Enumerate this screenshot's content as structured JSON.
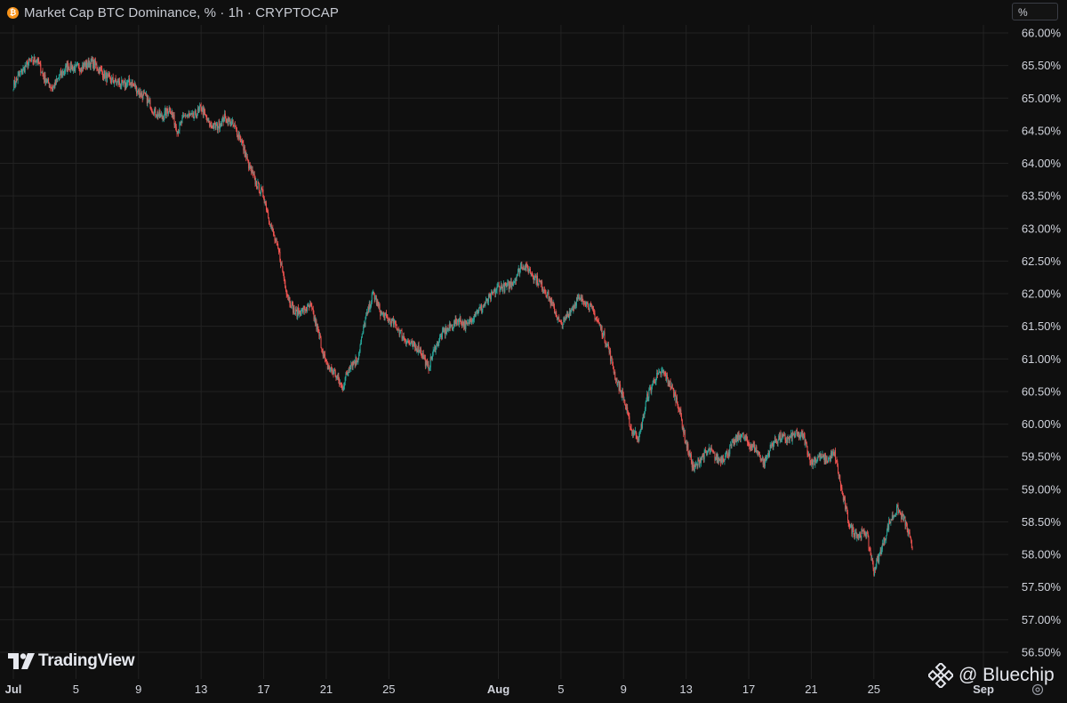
{
  "header": {
    "title": "Market Cap BTC Dominance, % · 1h · CRYPTOCAP",
    "symbol_icon": "bitcoin-icon",
    "unit_label": "%"
  },
  "branding": {
    "tradingview_label": "TradingView",
    "watermark_label": "@ Bluechip",
    "watermark_icon": "binance-diamond-icon"
  },
  "colors": {
    "background": "#0f0f0f",
    "grid": "#222222",
    "up": "#26a69a",
    "down": "#ef5350",
    "axis_text": "#d1d4dc"
  },
  "chart_data": {
    "type": "line",
    "title": "Market Cap BTC Dominance, % · 1h · CRYPTOCAP",
    "style": "candlestick-1h",
    "y_axis_side": "right",
    "grid": true,
    "ylim": [
      56.5,
      66.0
    ],
    "y_ticks": [
      66.0,
      65.5,
      65.0,
      64.5,
      64.0,
      63.5,
      63.0,
      62.5,
      62.0,
      61.5,
      61.0,
      60.5,
      60.0,
      59.5,
      59.0,
      58.5,
      58.0,
      57.5,
      57.0,
      56.5
    ],
    "y_tick_labels": [
      "66.00%",
      "65.50%",
      "65.00%",
      "64.50%",
      "64.00%",
      "63.50%",
      "63.00%",
      "62.50%",
      "62.00%",
      "61.50%",
      "61.00%",
      "60.50%",
      "60.00%",
      "59.50%",
      "59.00%",
      "58.50%",
      "58.00%",
      "57.50%",
      "57.00%",
      "56.50%"
    ],
    "xlim": [
      "2024-07-01",
      "2024-09-01"
    ],
    "x_ticks": [
      {
        "date": "2024-07-01",
        "label": "Jul",
        "bold": true
      },
      {
        "date": "2024-07-05",
        "label": "5",
        "bold": false
      },
      {
        "date": "2024-07-09",
        "label": "9",
        "bold": false
      },
      {
        "date": "2024-07-13",
        "label": "13",
        "bold": false
      },
      {
        "date": "2024-07-17",
        "label": "17",
        "bold": false
      },
      {
        "date": "2024-07-21",
        "label": "21",
        "bold": false
      },
      {
        "date": "2024-07-25",
        "label": "25",
        "bold": false
      },
      {
        "date": "2024-08-01",
        "label": "Aug",
        "bold": true
      },
      {
        "date": "2024-08-05",
        "label": "5",
        "bold": false
      },
      {
        "date": "2024-08-09",
        "label": "9",
        "bold": false
      },
      {
        "date": "2024-08-13",
        "label": "13",
        "bold": false
      },
      {
        "date": "2024-08-17",
        "label": "17",
        "bold": false
      },
      {
        "date": "2024-08-21",
        "label": "21",
        "bold": false
      },
      {
        "date": "2024-08-25",
        "label": "25",
        "bold": false
      },
      {
        "date": "2024-09-01",
        "label": "Sep",
        "bold": true
      }
    ],
    "series": [
      {
        "points": [
          [
            "2024-07-01T00:00",
            65.2
          ],
          [
            "2024-07-01T12:00",
            65.4
          ],
          [
            "2024-07-02T00:00",
            65.55
          ],
          [
            "2024-07-02T12:00",
            65.6
          ],
          [
            "2024-07-03T00:00",
            65.3
          ],
          [
            "2024-07-03T12:00",
            65.15
          ],
          [
            "2024-07-04T00:00",
            65.35
          ],
          [
            "2024-07-04T12:00",
            65.5
          ],
          [
            "2024-07-05T00:00",
            65.45
          ],
          [
            "2024-07-05T12:00",
            65.5
          ],
          [
            "2024-07-06T00:00",
            65.55
          ],
          [
            "2024-07-06T12:00",
            65.45
          ],
          [
            "2024-07-07T00:00",
            65.3
          ],
          [
            "2024-07-07T12:00",
            65.25
          ],
          [
            "2024-07-08T00:00",
            65.2
          ],
          [
            "2024-07-08T12:00",
            65.25
          ],
          [
            "2024-07-09T00:00",
            65.1
          ],
          [
            "2024-07-09T12:00",
            65.0
          ],
          [
            "2024-07-10T00:00",
            64.8
          ],
          [
            "2024-07-10T12:00",
            64.7
          ],
          [
            "2024-07-11T00:00",
            64.85
          ],
          [
            "2024-07-11T12:00",
            64.5
          ],
          [
            "2024-07-12T00:00",
            64.75
          ],
          [
            "2024-07-12T12:00",
            64.7
          ],
          [
            "2024-07-13T00:00",
            64.85
          ],
          [
            "2024-07-13T12:00",
            64.6
          ],
          [
            "2024-07-14T00:00",
            64.55
          ],
          [
            "2024-07-14T12:00",
            64.7
          ],
          [
            "2024-07-15T00:00",
            64.6
          ],
          [
            "2024-07-15T12:00",
            64.4
          ],
          [
            "2024-07-16T00:00",
            64.0
          ],
          [
            "2024-07-16T12:00",
            63.7
          ],
          [
            "2024-07-17T00:00",
            63.5
          ],
          [
            "2024-07-17T12:00",
            63.0
          ],
          [
            "2024-07-18T00:00",
            62.6
          ],
          [
            "2024-07-18T12:00",
            62.0
          ],
          [
            "2024-07-19T00:00",
            61.7
          ],
          [
            "2024-07-19T12:00",
            61.75
          ],
          [
            "2024-07-20T00:00",
            61.8
          ],
          [
            "2024-07-20T12:00",
            61.4
          ],
          [
            "2024-07-21T00:00",
            60.9
          ],
          [
            "2024-07-21T12:00",
            60.8
          ],
          [
            "2024-07-22T00:00",
            60.55
          ],
          [
            "2024-07-22T12:00",
            60.9
          ],
          [
            "2024-07-23T00:00",
            61.0
          ],
          [
            "2024-07-23T12:00",
            61.6
          ],
          [
            "2024-07-24T00:00",
            62.0
          ],
          [
            "2024-07-24T12:00",
            61.7
          ],
          [
            "2024-07-25T00:00",
            61.6
          ],
          [
            "2024-07-25T12:00",
            61.5
          ],
          [
            "2024-07-26T00:00",
            61.3
          ],
          [
            "2024-07-26T12:00",
            61.2
          ],
          [
            "2024-07-27T00:00",
            61.15
          ],
          [
            "2024-07-27T12:00",
            60.85
          ],
          [
            "2024-07-28T00:00",
            61.2
          ],
          [
            "2024-07-28T12:00",
            61.4
          ],
          [
            "2024-07-29T00:00",
            61.5
          ],
          [
            "2024-07-29T12:00",
            61.6
          ],
          [
            "2024-07-30T00:00",
            61.5
          ],
          [
            "2024-07-30T12:00",
            61.7
          ],
          [
            "2024-07-31T00:00",
            61.8
          ],
          [
            "2024-07-31T12:00",
            61.95
          ],
          [
            "2024-08-01T00:00",
            62.1
          ],
          [
            "2024-08-01T12:00",
            62.1
          ],
          [
            "2024-08-02T00:00",
            62.2
          ],
          [
            "2024-08-02T12:00",
            62.45
          ],
          [
            "2024-08-03T00:00",
            62.35
          ],
          [
            "2024-08-03T12:00",
            62.2
          ],
          [
            "2024-08-04T00:00",
            62.05
          ],
          [
            "2024-08-04T12:00",
            61.8
          ],
          [
            "2024-08-05T00:00",
            61.5
          ],
          [
            "2024-08-05T12:00",
            61.7
          ],
          [
            "2024-08-06T00:00",
            61.9
          ],
          [
            "2024-08-06T12:00",
            61.9
          ],
          [
            "2024-08-07T00:00",
            61.75
          ],
          [
            "2024-08-07T12:00",
            61.5
          ],
          [
            "2024-08-08T00:00",
            61.2
          ],
          [
            "2024-08-08T12:00",
            60.7
          ],
          [
            "2024-08-09T00:00",
            60.4
          ],
          [
            "2024-08-09T12:00",
            59.9
          ],
          [
            "2024-08-10T00:00",
            59.8
          ],
          [
            "2024-08-10T12:00",
            60.4
          ],
          [
            "2024-08-11T00:00",
            60.7
          ],
          [
            "2024-08-11T12:00",
            60.8
          ],
          [
            "2024-08-12T00:00",
            60.6
          ],
          [
            "2024-08-12T12:00",
            60.3
          ],
          [
            "2024-08-13T00:00",
            59.7
          ],
          [
            "2024-08-13T12:00",
            59.3
          ],
          [
            "2024-08-14T00:00",
            59.5
          ],
          [
            "2024-08-14T12:00",
            59.6
          ],
          [
            "2024-08-15T00:00",
            59.45
          ],
          [
            "2024-08-15T12:00",
            59.5
          ],
          [
            "2024-08-16T00:00",
            59.7
          ],
          [
            "2024-08-16T12:00",
            59.85
          ],
          [
            "2024-08-17T00:00",
            59.7
          ],
          [
            "2024-08-17T12:00",
            59.6
          ],
          [
            "2024-08-18T00:00",
            59.4
          ],
          [
            "2024-08-18T12:00",
            59.7
          ],
          [
            "2024-08-19T00:00",
            59.8
          ],
          [
            "2024-08-19T12:00",
            59.75
          ],
          [
            "2024-08-20T00:00",
            59.85
          ],
          [
            "2024-08-20T12:00",
            59.8
          ],
          [
            "2024-08-21T00:00",
            59.4
          ],
          [
            "2024-08-21T12:00",
            59.5
          ],
          [
            "2024-08-22T00:00",
            59.45
          ],
          [
            "2024-08-22T12:00",
            59.55
          ],
          [
            "2024-08-23T00:00",
            58.9
          ],
          [
            "2024-08-23T12:00",
            58.4
          ],
          [
            "2024-08-24T00:00",
            58.3
          ],
          [
            "2024-08-24T12:00",
            58.35
          ],
          [
            "2024-08-25T00:00",
            57.75
          ],
          [
            "2024-08-25T12:00",
            58.1
          ],
          [
            "2024-08-26T00:00",
            58.5
          ],
          [
            "2024-08-26T12:00",
            58.7
          ],
          [
            "2024-08-27T00:00",
            58.5
          ],
          [
            "2024-08-27T12:00",
            58.05
          ]
        ]
      }
    ]
  }
}
